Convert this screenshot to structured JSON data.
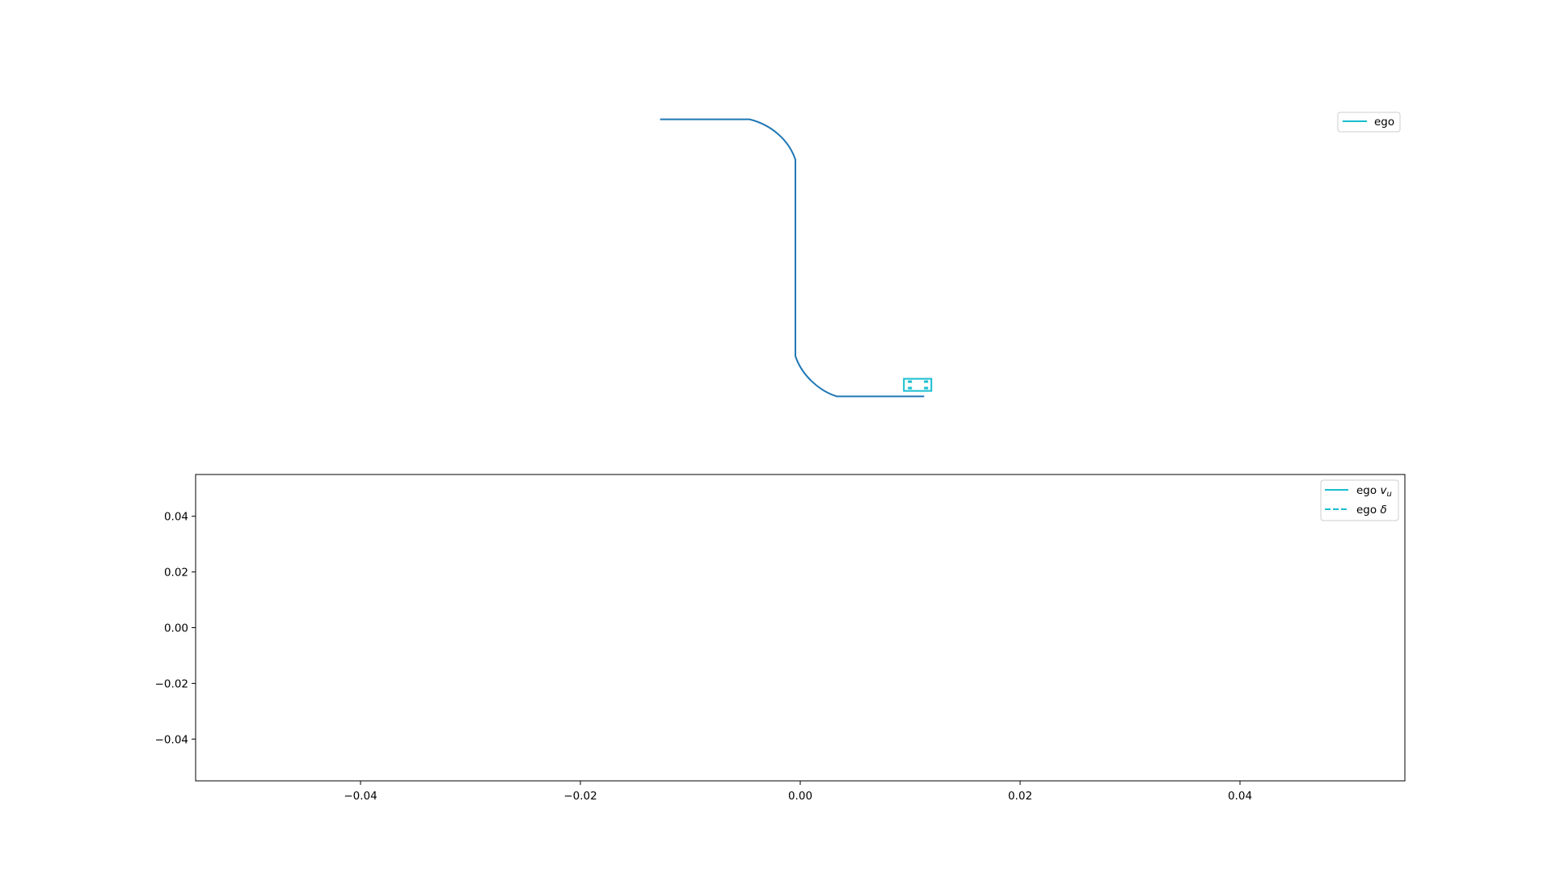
{
  "colors": {
    "track": "#1f77b4",
    "ego": "#17becf",
    "axes": "#000000",
    "legend_border": "#cccccc"
  },
  "chart_data": [
    {
      "type": "line",
      "title": "",
      "xlabel": "",
      "ylabel": "",
      "axes_visible": false,
      "grid": false,
      "legend_placement": "top-right",
      "legend": [
        {
          "label": "ego",
          "style": "solid",
          "color": "#17becf"
        }
      ],
      "series": [
        {
          "name": "",
          "color": "#1f77b4",
          "shape": "S-shaped path: horizontal segment, rounded turn down, long vertical drop, rounded turn, horizontal segment to the right",
          "x": [
            -12.4,
            -4.2,
            -2.2,
            -0.6,
            0.0,
            0.0,
            0.6,
            2.2,
            3.8,
            11.8
          ],
          "y": [
            12.7,
            12.7,
            12.2,
            10.8,
            9.0,
            -9.0,
            -10.8,
            -12.2,
            -12.7,
            -12.7
          ]
        }
      ],
      "markers": [
        {
          "name": "ego",
          "type": "vehicle-box",
          "x": 11.2,
          "y": -11.6,
          "color": "#17becf"
        }
      ]
    },
    {
      "type": "line",
      "title": "",
      "xlabel": "",
      "ylabel": "",
      "xlim": [
        -0.055,
        0.055
      ],
      "ylim": [
        -0.055,
        0.055
      ],
      "xticks": [
        "−0.04",
        "−0.02",
        "0.00",
        "0.02",
        "0.04"
      ],
      "xtick_values": [
        -0.04,
        -0.02,
        0.0,
        0.02,
        0.04
      ],
      "yticks": [
        "0.04",
        "0.02",
        "0.00",
        "−0.02",
        "−0.04"
      ],
      "ytick_values": [
        0.04,
        0.02,
        0.0,
        -0.02,
        -0.04
      ],
      "grid": false,
      "legend_placement": "top-right",
      "legend": [
        {
          "label": "ego",
          "sub": "v",
          "subscript": "u",
          "style": "solid",
          "color": "#17becf"
        },
        {
          "label": "ego",
          "sub": "δ",
          "subscript": "",
          "style": "dashed",
          "color": "#17becf"
        }
      ],
      "series": [
        {
          "name": "ego v_u",
          "values": []
        },
        {
          "name": "ego δ",
          "values": []
        }
      ]
    }
  ]
}
